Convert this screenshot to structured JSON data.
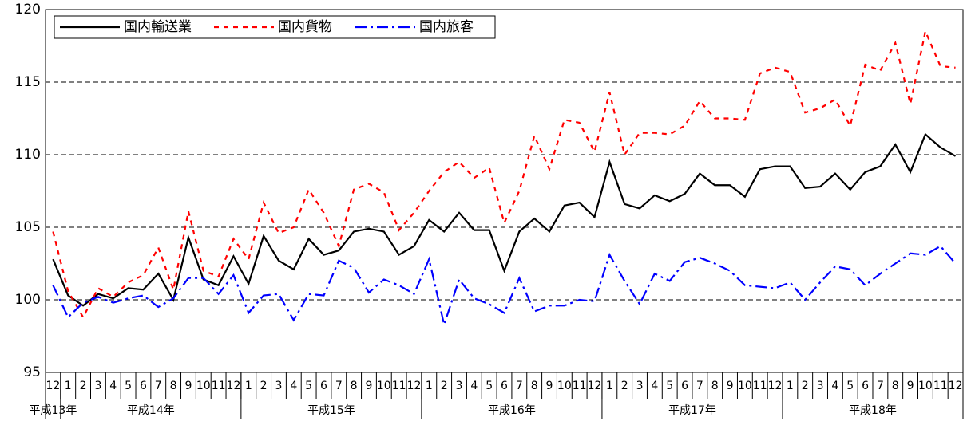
{
  "chart_data": {
    "type": "line",
    "category_groups": [
      {
        "label": "平成13年",
        "categories": [
          "12"
        ]
      },
      {
        "label": "平成14年",
        "categories": [
          "1",
          "2",
          "3",
          "4",
          "5",
          "6",
          "7",
          "8",
          "9",
          "10",
          "11",
          "12"
        ]
      },
      {
        "label": "平成15年",
        "categories": [
          "1",
          "2",
          "3",
          "4",
          "5",
          "6",
          "7",
          "8",
          "9",
          "10",
          "11",
          "12"
        ]
      },
      {
        "label": "平成16年",
        "categories": [
          "1",
          "2",
          "3",
          "4",
          "5",
          "6",
          "7",
          "8",
          "9",
          "10",
          "11",
          "12"
        ]
      },
      {
        "label": "平成17年",
        "categories": [
          "1",
          "2",
          "3",
          "4",
          "5",
          "6",
          "7",
          "8",
          "9",
          "10",
          "11",
          "12"
        ]
      },
      {
        "label": "平成18年",
        "categories": [
          "1",
          "2",
          "3",
          "4",
          "5",
          "6",
          "7",
          "8",
          "9",
          "10",
          "11",
          "12"
        ]
      }
    ],
    "series": [
      {
        "name": "国内輸送業",
        "color": "#000000",
        "dash": "solid",
        "values": [
          102.8,
          100.3,
          99.6,
          100.4,
          100.1,
          100.8,
          100.7,
          101.8,
          100.0,
          104.3,
          101.4,
          101.0,
          103.0,
          101.1,
          104.4,
          102.7,
          102.1,
          104.2,
          103.1,
          103.4,
          104.7,
          104.9,
          104.7,
          103.1,
          103.7,
          105.5,
          104.7,
          106.0,
          104.8,
          104.8,
          102.0,
          104.7,
          105.6,
          104.7,
          106.5,
          106.7,
          105.7,
          109.5,
          106.6,
          106.3,
          107.2,
          106.8,
          107.3,
          108.7,
          107.9,
          107.9,
          107.1,
          109.0,
          109.2,
          109.2,
          107.7,
          107.8,
          108.7,
          107.6,
          108.8,
          109.2,
          110.7,
          108.8,
          111.4,
          110.5,
          109.9
        ]
      },
      {
        "name": "国内貨物",
        "color": "#ff0000",
        "dash": "dotted",
        "values": [
          104.7,
          100.6,
          98.8,
          100.8,
          100.2,
          101.2,
          101.7,
          103.6,
          100.7,
          106.1,
          102.0,
          101.6,
          104.2,
          102.8,
          106.7,
          104.6,
          105.0,
          107.6,
          106.0,
          103.7,
          107.6,
          108.0,
          107.4,
          104.8,
          106.0,
          107.5,
          108.8,
          109.5,
          108.4,
          109.1,
          105.3,
          107.5,
          111.3,
          109.0,
          112.4,
          112.2,
          110.2,
          114.3,
          110.0,
          111.5,
          111.5,
          111.4,
          112.0,
          113.7,
          112.5,
          112.5,
          112.4,
          115.6,
          116.0,
          115.7,
          112.9,
          113.2,
          113.8,
          112.0,
          116.2,
          115.8,
          117.7,
          113.5,
          118.5,
          116.1,
          116.0
        ]
      },
      {
        "name": "国内旅客",
        "color": "#0000ff",
        "dash": "dashdot",
        "values": [
          101.0,
          98.8,
          99.8,
          100.2,
          99.8,
          100.1,
          100.3,
          99.5,
          100.1,
          101.5,
          101.5,
          100.4,
          101.7,
          99.1,
          100.3,
          100.4,
          98.6,
          100.4,
          100.3,
          102.7,
          102.2,
          100.5,
          101.4,
          101.0,
          100.4,
          102.8,
          98.3,
          101.4,
          100.1,
          99.7,
          99.1,
          101.5,
          99.2,
          99.6,
          99.6,
          100.0,
          99.9,
          103.1,
          101.3,
          99.7,
          101.8,
          101.3,
          102.6,
          102.9,
          102.5,
          102.0,
          101.0,
          100.9,
          100.8,
          101.2,
          100.0,
          101.2,
          102.3,
          102.1,
          101.0,
          101.8,
          102.5,
          103.2,
          103.1,
          103.7,
          102.5
        ]
      }
    ],
    "ylim": [
      95,
      120
    ],
    "yticks": [
      95,
      100,
      105,
      110,
      115,
      120
    ],
    "grid": true,
    "legend": "upper left"
  }
}
